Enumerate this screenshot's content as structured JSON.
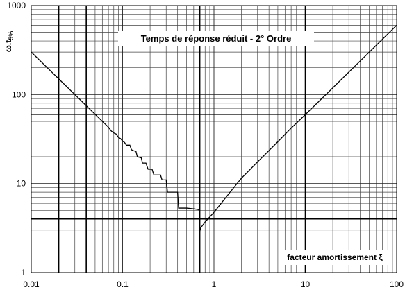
{
  "chart_data": {
    "type": "line",
    "title": "Temps de réponse réduit -  2° Ordre",
    "y_label": "ω.t",
    "y_label_sub": "5%",
    "x_label": "facteur amortissement ξ",
    "x_log": true,
    "y_log": true,
    "grid": true,
    "minor_grid": true,
    "xlim": [
      0.01,
      100
    ],
    "ylim": [
      1,
      1000
    ],
    "xticks": [
      0.01,
      0.1,
      1,
      10,
      100
    ],
    "yticks": [
      1,
      10,
      100,
      1000
    ],
    "highlight_x": [
      0.02,
      0.04,
      0.7,
      10
    ],
    "highlight_y": [
      4,
      60
    ],
    "series": [
      {
        "color": "#000000",
        "x": [
          0.01,
          0.015,
          0.02,
          0.03,
          0.04,
          0.05,
          0.06,
          0.07,
          0.075,
          0.08,
          0.085,
          0.09,
          0.095,
          0.1,
          0.105,
          0.11,
          0.12,
          0.125,
          0.13,
          0.14,
          0.145,
          0.16,
          0.165,
          0.18,
          0.19,
          0.21,
          0.22,
          0.26,
          0.27,
          0.3,
          0.31,
          0.4,
          0.41,
          0.5,
          0.6,
          0.68,
          0.69,
          0.7,
          0.72,
          0.8,
          1,
          1.5,
          2,
          3,
          5,
          7,
          10,
          20,
          30,
          50,
          70,
          100
        ],
        "values": [
          300,
          200,
          150,
          100,
          75,
          60,
          50,
          43,
          39,
          37,
          36,
          33,
          32,
          30,
          29,
          27,
          27,
          24,
          23.5,
          23,
          20,
          19.5,
          17,
          17,
          14.5,
          14.5,
          12.5,
          12.5,
          11,
          11,
          8,
          8,
          5.3,
          5.3,
          5.2,
          5.1,
          4.9,
          2.9,
          3.2,
          3.7,
          4.75,
          8,
          11.5,
          17.5,
          29.5,
          42,
          59.5,
          119,
          179,
          299,
          419,
          600
        ]
      }
    ]
  }
}
